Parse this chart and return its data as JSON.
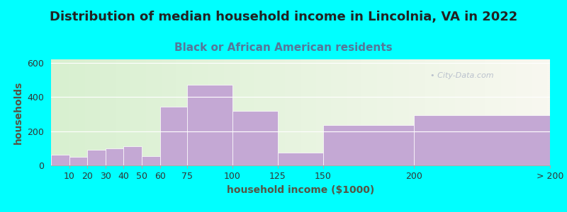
{
  "title": "Distribution of median household income in Lincolnia, VA in 2022",
  "subtitle": "Black or African American residents",
  "xlabel": "household income ($1000)",
  "ylabel": "households",
  "background_outer": "#00FFFF",
  "bar_color": "#c4a8d4",
  "categories": [
    "10",
    "20",
    "30",
    "40",
    "50",
    "60",
    "75",
    "100",
    "125",
    "150",
    "200",
    "> 200"
  ],
  "values": [
    60,
    50,
    90,
    100,
    110,
    55,
    345,
    470,
    320,
    75,
    235,
    295
  ],
  "left_edges": [
    0,
    10,
    20,
    30,
    40,
    50,
    60,
    75,
    100,
    125,
    150,
    200
  ],
  "widths": [
    10,
    10,
    10,
    10,
    10,
    10,
    15,
    25,
    25,
    25,
    50,
    75
  ],
  "tick_locs": [
    10,
    20,
    30,
    40,
    50,
    60,
    75,
    100,
    125,
    150,
    200,
    275
  ],
  "tick_labels": [
    "10",
    "20",
    "30",
    "40",
    "50",
    "60",
    "75",
    "100",
    "125",
    "150",
    "200",
    "> 200"
  ],
  "xlim": [
    0,
    275
  ],
  "ylim": [
    0,
    620
  ],
  "yticks": [
    0,
    200,
    400,
    600
  ],
  "title_fontsize": 13,
  "subtitle_fontsize": 11,
  "axis_label_fontsize": 10,
  "tick_fontsize": 9,
  "title_color": "#222222",
  "subtitle_color": "#557799",
  "axis_label_color": "#555544",
  "watermark_text": "• City-Data.com"
}
